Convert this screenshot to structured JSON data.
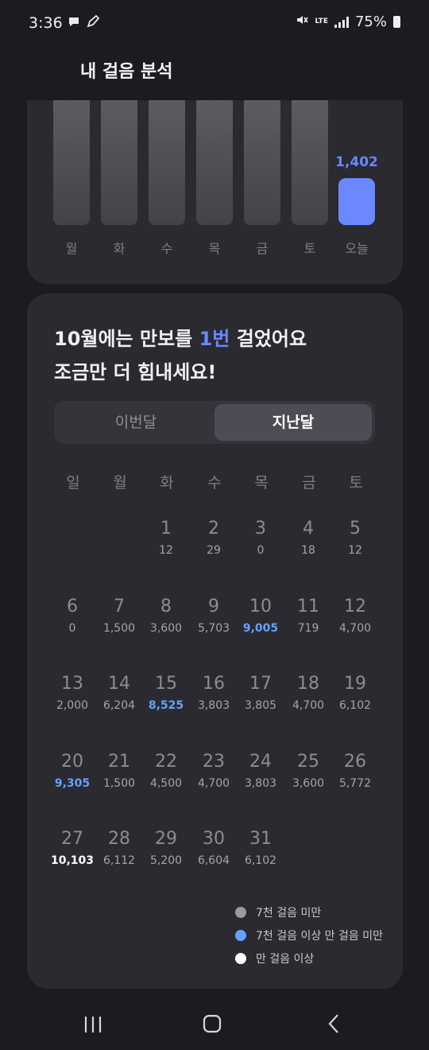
{
  "status": {
    "time": "3:36",
    "battery": "75%",
    "network": "LTE"
  },
  "header": {
    "title": "내 걸음 분석"
  },
  "week": {
    "days": [
      "월",
      "화",
      "수",
      "목",
      "금",
      "토",
      "오늘"
    ],
    "today_value": "1,402"
  },
  "month": {
    "headline_pre": "10월에는 만보를 ",
    "headline_highlight": "1번",
    "headline_post": " 걸었어요",
    "headline_line2": "조금만 더 힘내세요!",
    "tabs": [
      "이번달",
      "지난달"
    ],
    "selected_tab": "지난달",
    "weekdays": [
      "일",
      "월",
      "화",
      "수",
      "목",
      "금",
      "토"
    ],
    "days": [
      {
        "d": "1",
        "s": "12",
        "l": "low"
      },
      {
        "d": "2",
        "s": "29",
        "l": "low"
      },
      {
        "d": "3",
        "s": "0",
        "l": "low"
      },
      {
        "d": "4",
        "s": "18",
        "l": "low"
      },
      {
        "d": "5",
        "s": "12",
        "l": "low"
      },
      {
        "d": "6",
        "s": "0",
        "l": "low"
      },
      {
        "d": "7",
        "s": "1,500",
        "l": "low"
      },
      {
        "d": "8",
        "s": "3,600",
        "l": "low"
      },
      {
        "d": "9",
        "s": "5,703",
        "l": "low"
      },
      {
        "d": "10",
        "s": "9,005",
        "l": "mid"
      },
      {
        "d": "11",
        "s": "719",
        "l": "low"
      },
      {
        "d": "12",
        "s": "4,700",
        "l": "low"
      },
      {
        "d": "13",
        "s": "2,000",
        "l": "low"
      },
      {
        "d": "14",
        "s": "6,204",
        "l": "low"
      },
      {
        "d": "15",
        "s": "8,525",
        "l": "mid"
      },
      {
        "d": "16",
        "s": "3,803",
        "l": "low"
      },
      {
        "d": "17",
        "s": "3,805",
        "l": "low"
      },
      {
        "d": "18",
        "s": "4,700",
        "l": "low"
      },
      {
        "d": "19",
        "s": "6,102",
        "l": "low"
      },
      {
        "d": "20",
        "s": "9,305",
        "l": "mid"
      },
      {
        "d": "21",
        "s": "1,500",
        "l": "low"
      },
      {
        "d": "22",
        "s": "4,500",
        "l": "low"
      },
      {
        "d": "23",
        "s": "4,700",
        "l": "low"
      },
      {
        "d": "24",
        "s": "3,803",
        "l": "low"
      },
      {
        "d": "25",
        "s": "3,600",
        "l": "low"
      },
      {
        "d": "26",
        "s": "5,772",
        "l": "low"
      },
      {
        "d": "27",
        "s": "10,103",
        "l": "high"
      },
      {
        "d": "28",
        "s": "6,112",
        "l": "low"
      },
      {
        "d": "29",
        "s": "5,200",
        "l": "low"
      },
      {
        "d": "30",
        "s": "6,604",
        "l": "low"
      },
      {
        "d": "31",
        "s": "6,102",
        "l": "low"
      }
    ],
    "legend": [
      {
        "label": "7천 걸음 미만",
        "color": "#9a9aa0"
      },
      {
        "label": "7천 걸음 이상 만 걸음 미만",
        "color": "#63a2ff"
      },
      {
        "label": "만 걸음 이상",
        "color": "#ffffff"
      }
    ]
  },
  "colors": {
    "accent": "#6b88ff",
    "mid": "#63a2ff",
    "card": "#2a2a30",
    "bg": "#1b1b20"
  }
}
